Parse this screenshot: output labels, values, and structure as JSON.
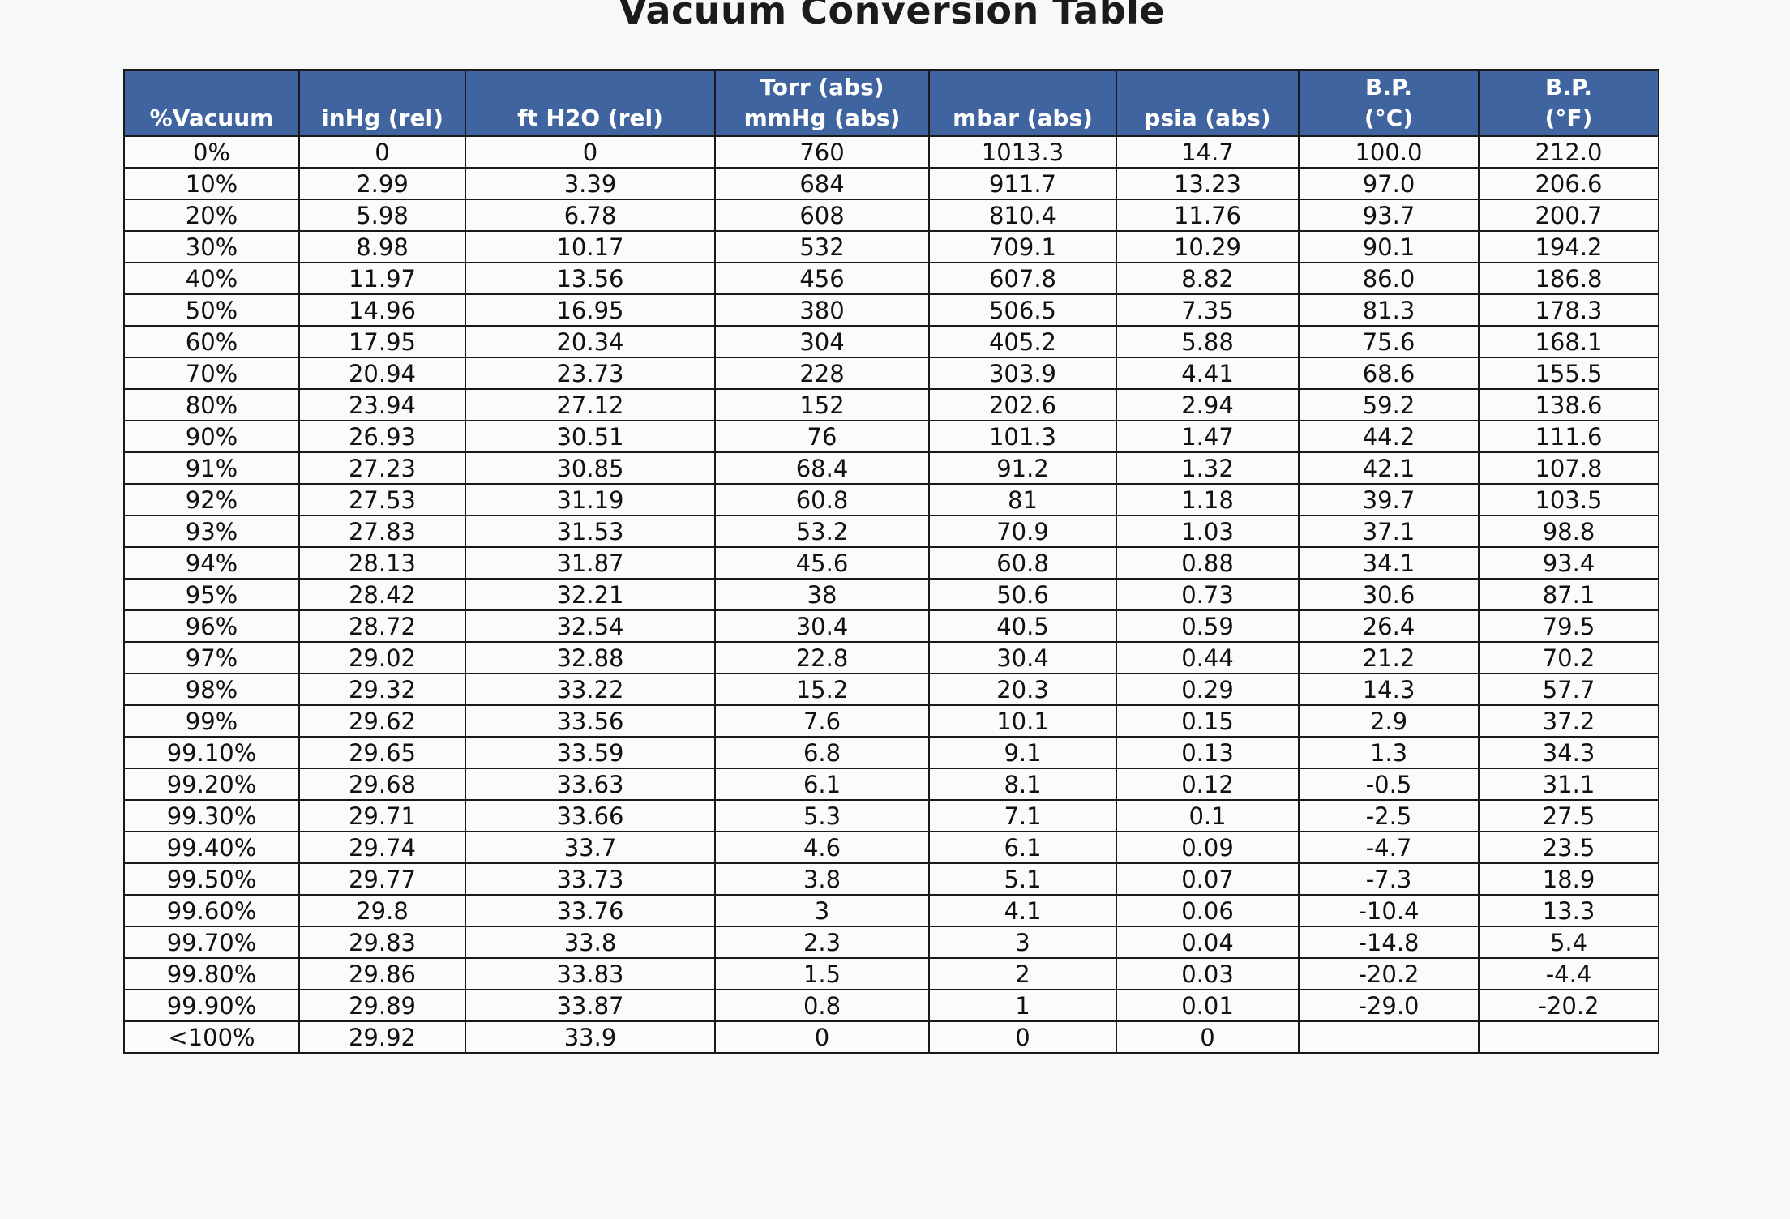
{
  "title": "Vacuum Conversion Table",
  "headers": [
    [
      "%Vacuum"
    ],
    [
      "inHg (rel)"
    ],
    [
      "ft H2O (rel)"
    ],
    [
      "Torr (abs)",
      "mmHg (abs)"
    ],
    [
      "mbar (abs)"
    ],
    [
      "psia (abs)"
    ],
    [
      "B.P.",
      "(°C)"
    ],
    [
      "B.P.",
      "(°F)"
    ]
  ],
  "rows": [
    [
      "0%",
      "0",
      "0",
      "760",
      "1013.3",
      "14.7",
      "100.0",
      "212.0"
    ],
    [
      "10%",
      "2.99",
      "3.39",
      "684",
      "911.7",
      "13.23",
      "97.0",
      "206.6"
    ],
    [
      "20%",
      "5.98",
      "6.78",
      "608",
      "810.4",
      "11.76",
      "93.7",
      "200.7"
    ],
    [
      "30%",
      "8.98",
      "10.17",
      "532",
      "709.1",
      "10.29",
      "90.1",
      "194.2"
    ],
    [
      "40%",
      "11.97",
      "13.56",
      "456",
      "607.8",
      "8.82",
      "86.0",
      "186.8"
    ],
    [
      "50%",
      "14.96",
      "16.95",
      "380",
      "506.5",
      "7.35",
      "81.3",
      "178.3"
    ],
    [
      "60%",
      "17.95",
      "20.34",
      "304",
      "405.2",
      "5.88",
      "75.6",
      "168.1"
    ],
    [
      "70%",
      "20.94",
      "23.73",
      "228",
      "303.9",
      "4.41",
      "68.6",
      "155.5"
    ],
    [
      "80%",
      "23.94",
      "27.12",
      "152",
      "202.6",
      "2.94",
      "59.2",
      "138.6"
    ],
    [
      "90%",
      "26.93",
      "30.51",
      "76",
      "101.3",
      "1.47",
      "44.2",
      "111.6"
    ],
    [
      "91%",
      "27.23",
      "30.85",
      "68.4",
      "91.2",
      "1.32",
      "42.1",
      "107.8"
    ],
    [
      "92%",
      "27.53",
      "31.19",
      "60.8",
      "81",
      "1.18",
      "39.7",
      "103.5"
    ],
    [
      "93%",
      "27.83",
      "31.53",
      "53.2",
      "70.9",
      "1.03",
      "37.1",
      "98.8"
    ],
    [
      "94%",
      "28.13",
      "31.87",
      "45.6",
      "60.8",
      "0.88",
      "34.1",
      "93.4"
    ],
    [
      "95%",
      "28.42",
      "32.21",
      "38",
      "50.6",
      "0.73",
      "30.6",
      "87.1"
    ],
    [
      "96%",
      "28.72",
      "32.54",
      "30.4",
      "40.5",
      "0.59",
      "26.4",
      "79.5"
    ],
    [
      "97%",
      "29.02",
      "32.88",
      "22.8",
      "30.4",
      "0.44",
      "21.2",
      "70.2"
    ],
    [
      "98%",
      "29.32",
      "33.22",
      "15.2",
      "20.3",
      "0.29",
      "14.3",
      "57.7"
    ],
    [
      "99%",
      "29.62",
      "33.56",
      "7.6",
      "10.1",
      "0.15",
      "2.9",
      "37.2"
    ],
    [
      "99.10%",
      "29.65",
      "33.59",
      "6.8",
      "9.1",
      "0.13",
      "1.3",
      "34.3"
    ],
    [
      "99.20%",
      "29.68",
      "33.63",
      "6.1",
      "8.1",
      "0.12",
      "-0.5",
      "31.1"
    ],
    [
      "99.30%",
      "29.71",
      "33.66",
      "5.3",
      "7.1",
      "0.1",
      "-2.5",
      "27.5"
    ],
    [
      "99.40%",
      "29.74",
      "33.7",
      "4.6",
      "6.1",
      "0.09",
      "-4.7",
      "23.5"
    ],
    [
      "99.50%",
      "29.77",
      "33.73",
      "3.8",
      "5.1",
      "0.07",
      "-7.3",
      "18.9"
    ],
    [
      "99.60%",
      "29.8",
      "33.76",
      "3",
      "4.1",
      "0.06",
      "-10.4",
      "13.3"
    ],
    [
      "99.70%",
      "29.83",
      "33.8",
      "2.3",
      "3",
      "0.04",
      "-14.8",
      "5.4"
    ],
    [
      "99.80%",
      "29.86",
      "33.83",
      "1.5",
      "2",
      "0.03",
      "-20.2",
      "-4.4"
    ],
    [
      "99.90%",
      "29.89",
      "33.87",
      "0.8",
      "1",
      "0.01",
      "-29.0",
      "-20.2"
    ],
    [
      "<100%",
      "29.92",
      "33.9",
      "0",
      "0",
      "0",
      "",
      ""
    ]
  ],
  "colors": {
    "header_bg": "#3f64a0",
    "header_text": "#ffffff",
    "grid": "#1a1a1a",
    "page_bg": "#f7f8f8"
  }
}
